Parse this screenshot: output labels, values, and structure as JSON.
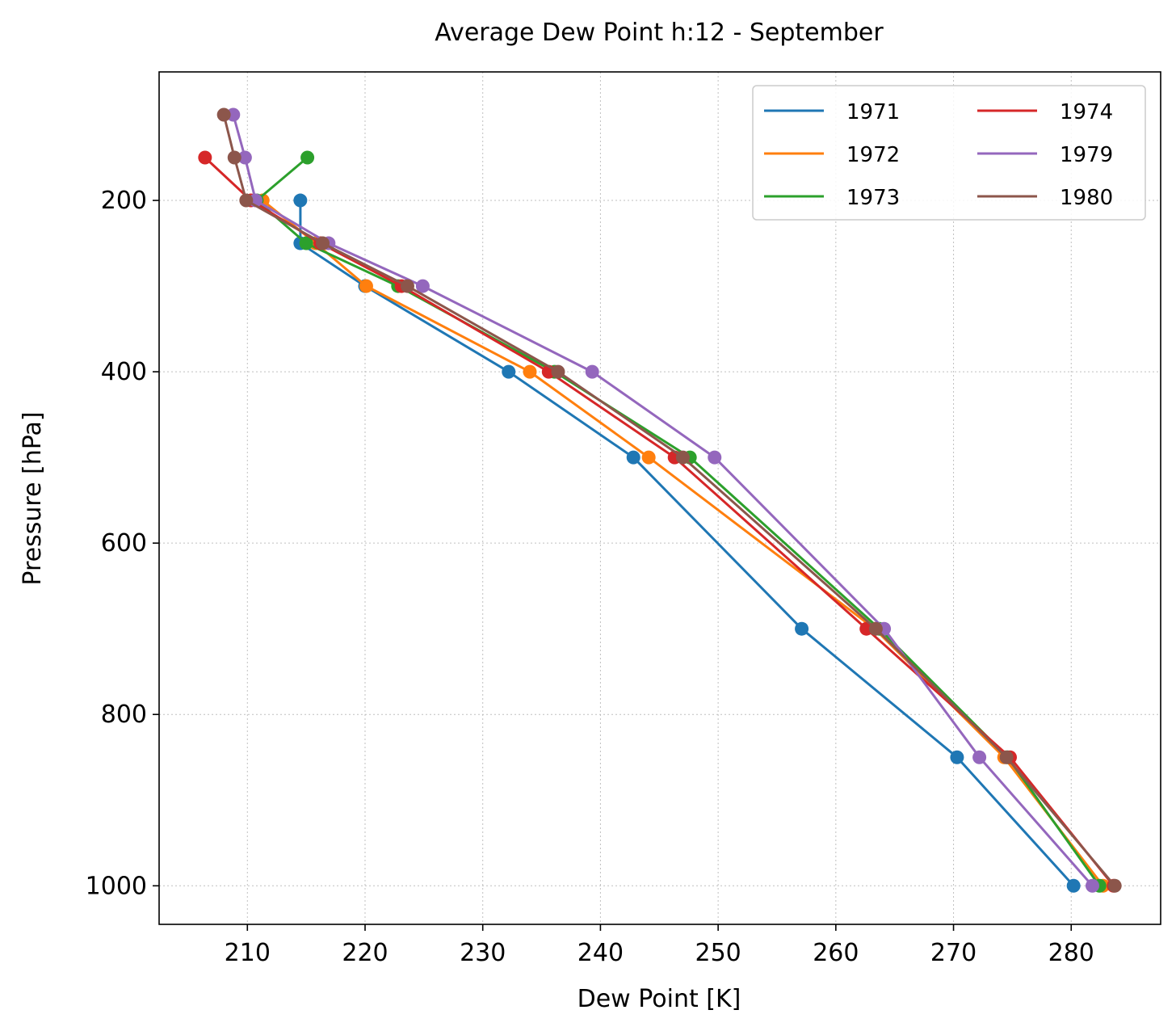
{
  "chart_data": {
    "type": "line",
    "title": "Average Dew Point h:12 - September",
    "xlabel": "Dew Point [K]",
    "ylabel": "Pressure [hPa]",
    "xlim": [
      202.5,
      287.6
    ],
    "ylim": [
      1045,
      50
    ],
    "y_inverted": true,
    "xticks": [
      210,
      220,
      230,
      240,
      250,
      260,
      270,
      280
    ],
    "yticks": [
      200,
      400,
      600,
      800,
      1000
    ],
    "grid": true,
    "legend_position": "top-right",
    "legend_columns": 2,
    "markers": true,
    "series": [
      {
        "name": "1971",
        "color": "#1f77b4",
        "points": [
          [
            214.5,
            200
          ],
          [
            214.5,
            250
          ],
          [
            220.0,
            300
          ],
          [
            232.2,
            400
          ],
          [
            242.8,
            500
          ],
          [
            257.1,
            700
          ],
          [
            270.3,
            850
          ],
          [
            280.2,
            1000
          ]
        ]
      },
      {
        "name": "1972",
        "color": "#ff7f0e",
        "points": [
          [
            211.3,
            200
          ],
          [
            215.8,
            250
          ],
          [
            220.1,
            300
          ],
          [
            234.0,
            400
          ],
          [
            244.1,
            500
          ],
          [
            263.3,
            700
          ],
          [
            274.3,
            850
          ],
          [
            282.7,
            1000
          ]
        ]
      },
      {
        "name": "1973",
        "color": "#2ca02c",
        "points": [
          [
            215.1,
            150
          ],
          [
            210.8,
            200
          ],
          [
            215.0,
            250
          ],
          [
            222.8,
            300
          ],
          [
            236.1,
            400
          ],
          [
            247.6,
            500
          ],
          [
            263.7,
            700
          ],
          [
            274.6,
            850
          ],
          [
            282.4,
            1000
          ]
        ]
      },
      {
        "name": "1974",
        "color": "#d62728",
        "points": [
          [
            206.4,
            150
          ],
          [
            210.3,
            200
          ],
          [
            216.2,
            250
          ],
          [
            223.1,
            300
          ],
          [
            235.6,
            400
          ],
          [
            246.3,
            500
          ],
          [
            262.6,
            700
          ],
          [
            274.8,
            850
          ],
          [
            283.6,
            1000
          ]
        ]
      },
      {
        "name": "1979",
        "color": "#9467bd",
        "points": [
          [
            208.8,
            100
          ],
          [
            209.8,
            150
          ],
          [
            210.7,
            200
          ],
          [
            216.9,
            250
          ],
          [
            224.9,
            300
          ],
          [
            239.3,
            400
          ],
          [
            249.7,
            500
          ],
          [
            264.1,
            700
          ],
          [
            272.2,
            850
          ],
          [
            281.8,
            1000
          ]
        ]
      },
      {
        "name": "1980",
        "color": "#8c564b",
        "points": [
          [
            208.0,
            100
          ],
          [
            208.9,
            150
          ],
          [
            209.9,
            200
          ],
          [
            216.4,
            250
          ],
          [
            223.6,
            300
          ],
          [
            236.4,
            400
          ],
          [
            247.0,
            500
          ],
          [
            263.4,
            700
          ],
          [
            274.5,
            850
          ],
          [
            283.7,
            1000
          ]
        ]
      }
    ]
  }
}
